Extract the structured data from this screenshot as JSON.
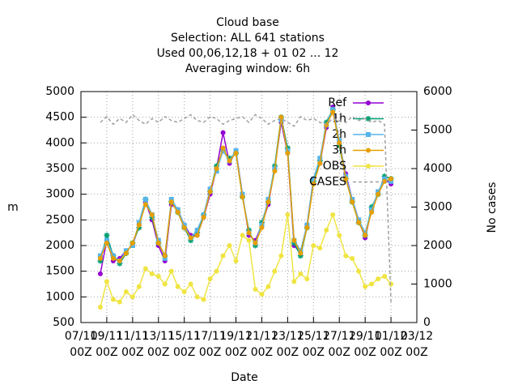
{
  "chart_data": {
    "type": "line",
    "title": [
      "Cloud base",
      "Selection: ALL    641 stations",
      "Used  00,06,12,18 + 01 02 ... 12",
      "Averaging window:  6h"
    ],
    "x_label": "Date",
    "y_label": "m",
    "y2_label": "No cases",
    "x": [
      "08/11 12Z",
      "09/11 00Z",
      "09/11 12Z",
      "10/11 00Z",
      "10/11 12Z",
      "11/11 00Z",
      "11/11 12Z",
      "12/11 00Z",
      "12/11 12Z",
      "13/11 00Z",
      "13/11 12Z",
      "14/11 00Z",
      "14/11 12Z",
      "15/11 00Z",
      "15/11 12Z",
      "16/11 00Z",
      "16/11 12Z",
      "17/11 00Z",
      "17/11 12Z",
      "18/11 00Z",
      "18/11 12Z",
      "19/11 00Z",
      "19/11 12Z",
      "20/11 00Z",
      "20/11 12Z",
      "21/11 00Z",
      "21/11 12Z",
      "22/11 00Z",
      "22/11 12Z",
      "23/11 00Z",
      "23/11 12Z",
      "24/11 00Z",
      "24/11 12Z",
      "25/11 00Z",
      "25/11 12Z",
      "26/11 00Z",
      "26/11 12Z",
      "27/11 00Z",
      "27/11 12Z",
      "28/11 00Z",
      "28/11 12Z",
      "29/11 00Z",
      "29/11 12Z",
      "30/11 00Z",
      "30/11 12Z",
      "01/12 00Z"
    ],
    "xlim": [
      "07/11 00Z",
      "03/12 00Z"
    ],
    "xticks": [
      "07/11 00Z",
      "09/11 00Z",
      "11/11 00Z",
      "13/11 00Z",
      "15/11 00Z",
      "17/11 00Z",
      "19/11 00Z",
      "21/11 00Z",
      "23/11 00Z",
      "25/11 00Z",
      "27/11 00Z",
      "29/11 00Z",
      "01/12 00Z",
      "03/12 00Z"
    ],
    "ylim": [
      500,
      5000
    ],
    "yticks": [
      500,
      1000,
      1500,
      2000,
      2500,
      3000,
      3500,
      4000,
      4500,
      5000
    ],
    "y2lim": [
      0,
      6000
    ],
    "y2ticks": [
      0,
      1000,
      2000,
      3000,
      4000,
      5000,
      6000
    ],
    "grid": true,
    "legend": "upper right",
    "series": [
      {
        "name": "Ref",
        "color": "#9400d3",
        "marker": "circle",
        "values": [
          1450,
          2100,
          1700,
          1750,
          1900,
          2000,
          2400,
          2850,
          2500,
          2000,
          1700,
          2800,
          2700,
          2400,
          2200,
          2200,
          2550,
          3000,
          3500,
          4200,
          3600,
          3850,
          3000,
          2200,
          2100,
          2400,
          2800,
          3500,
          4400,
          3800,
          2000,
          1850,
          2400,
          3300,
          3600,
          4300,
          4700,
          4000,
          3400,
          2900,
          2500,
          2150,
          2700,
          3000,
          3300,
          3200
        ]
      },
      {
        "name": "1h",
        "color": "#009e73",
        "marker": "star",
        "values": [
          1700,
          2200,
          1800,
          1650,
          1850,
          2050,
          2350,
          2900,
          2550,
          2050,
          1800,
          2850,
          2650,
          2350,
          2100,
          2250,
          2600,
          3050,
          3550,
          3850,
          3700,
          3800,
          2950,
          2300,
          2000,
          2450,
          2850,
          3550,
          4500,
          3900,
          2050,
          1800,
          2350,
          3250,
          3650,
          4400,
          4650,
          3950,
          3300,
          2850,
          2450,
          2200,
          2750,
          3000,
          3350,
          3300
        ]
      },
      {
        "name": "2h",
        "color": "#56b4e9",
        "marker": "square",
        "values": [
          1800,
          2100,
          1800,
          1700,
          1900,
          2000,
          2450,
          2900,
          2600,
          2100,
          1750,
          2900,
          2700,
          2400,
          2150,
          2300,
          2600,
          3100,
          3450,
          3850,
          3650,
          3850,
          3000,
          2250,
          2050,
          2400,
          2900,
          3500,
          4450,
          3850,
          2100,
          1900,
          2400,
          3300,
          3700,
          4350,
          4650,
          4050,
          3350,
          2900,
          2500,
          2250,
          2700,
          3050,
          3300,
          3250
        ]
      },
      {
        "name": "3h",
        "color": "#e69f00",
        "marker": "circle",
        "values": [
          1750,
          2050,
          1750,
          1700,
          1850,
          2050,
          2400,
          2800,
          2600,
          2050,
          1800,
          2850,
          2650,
          2350,
          2150,
          2200,
          2550,
          3050,
          3500,
          3900,
          3650,
          3800,
          2950,
          2250,
          2050,
          2350,
          2850,
          3450,
          4500,
          3800,
          2100,
          1850,
          2350,
          3200,
          3600,
          4350,
          4600,
          4000,
          3300,
          2850,
          2450,
          2200,
          2650,
          3000,
          3250,
          3300
        ]
      },
      {
        "name": "OBS",
        "color": "#f0e442",
        "marker": "circle",
        "values": [
          800,
          1300,
          950,
          900,
          1100,
          1000,
          1200,
          1550,
          1450,
          1400,
          1250,
          1500,
          1200,
          1100,
          1250,
          1000,
          950,
          1350,
          1500,
          1800,
          2000,
          1700,
          2200,
          2100,
          1150,
          1050,
          1200,
          1500,
          1800,
          2600,
          1300,
          1450,
          1350,
          2000,
          1950,
          2300,
          2600,
          2200,
          1800,
          1750,
          1500,
          1200,
          1250,
          1350,
          1400,
          1250
        ]
      },
      {
        "name": "CASES",
        "color": "#a0a0a0",
        "axis": "y2",
        "dashed": true,
        "values": [
          5200,
          5350,
          5150,
          5300,
          5200,
          5400,
          5250,
          5150,
          5300,
          5200,
          5350,
          5250,
          5200,
          5300,
          5400,
          5250,
          5200,
          5350,
          5300,
          5150,
          5250,
          5300,
          5350,
          5200,
          5400,
          5300,
          5150,
          5250,
          5300,
          5200,
          5100,
          5350,
          5250,
          5300,
          5200,
          5150,
          5300,
          5250,
          5200,
          5350,
          5250,
          5300,
          5200,
          5250,
          5150,
          500
        ]
      }
    ]
  }
}
